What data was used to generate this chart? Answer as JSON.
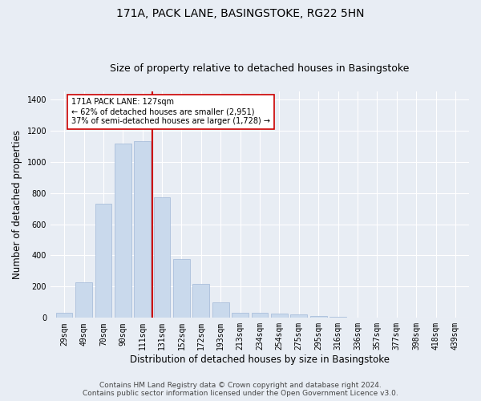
{
  "title": "171A, PACK LANE, BASINGSTOKE, RG22 5HN",
  "subtitle": "Size of property relative to detached houses in Basingstoke",
  "xlabel": "Distribution of detached houses by size in Basingstoke",
  "ylabel": "Number of detached properties",
  "footer_line1": "Contains HM Land Registry data © Crown copyright and database right 2024.",
  "footer_line2": "Contains public sector information licensed under the Open Government Licence v3.0.",
  "categories": [
    "29sqm",
    "49sqm",
    "70sqm",
    "90sqm",
    "111sqm",
    "131sqm",
    "152sqm",
    "172sqm",
    "193sqm",
    "213sqm",
    "234sqm",
    "254sqm",
    "275sqm",
    "295sqm",
    "316sqm",
    "336sqm",
    "357sqm",
    "377sqm",
    "398sqm",
    "418sqm",
    "439sqm"
  ],
  "bar_values": [
    35,
    230,
    730,
    1115,
    1130,
    770,
    375,
    215,
    100,
    35,
    35,
    25,
    20,
    10,
    5,
    0,
    0,
    0,
    0,
    0,
    0
  ],
  "bar_color": "#c9d9ec",
  "bar_edge_color": "#a0b8d8",
  "vline_x_index": 4.5,
  "vline_color": "#cc0000",
  "annotation_line1": "171A PACK LANE: 127sqm",
  "annotation_line2": "← 62% of detached houses are smaller (2,951)",
  "annotation_line3": "37% of semi-detached houses are larger (1,728) →",
  "annotation_box_color": "#ffffff",
  "annotation_box_edge_color": "#cc0000",
  "ylim": [
    0,
    1450
  ],
  "yticks": [
    0,
    200,
    400,
    600,
    800,
    1000,
    1200,
    1400
  ],
  "background_color": "#e8edf4",
  "plot_bg_color": "#e8edf4",
  "grid_color": "#ffffff",
  "title_fontsize": 10,
  "subtitle_fontsize": 9,
  "axis_label_fontsize": 8.5,
  "tick_fontsize": 7,
  "footer_fontsize": 6.5
}
